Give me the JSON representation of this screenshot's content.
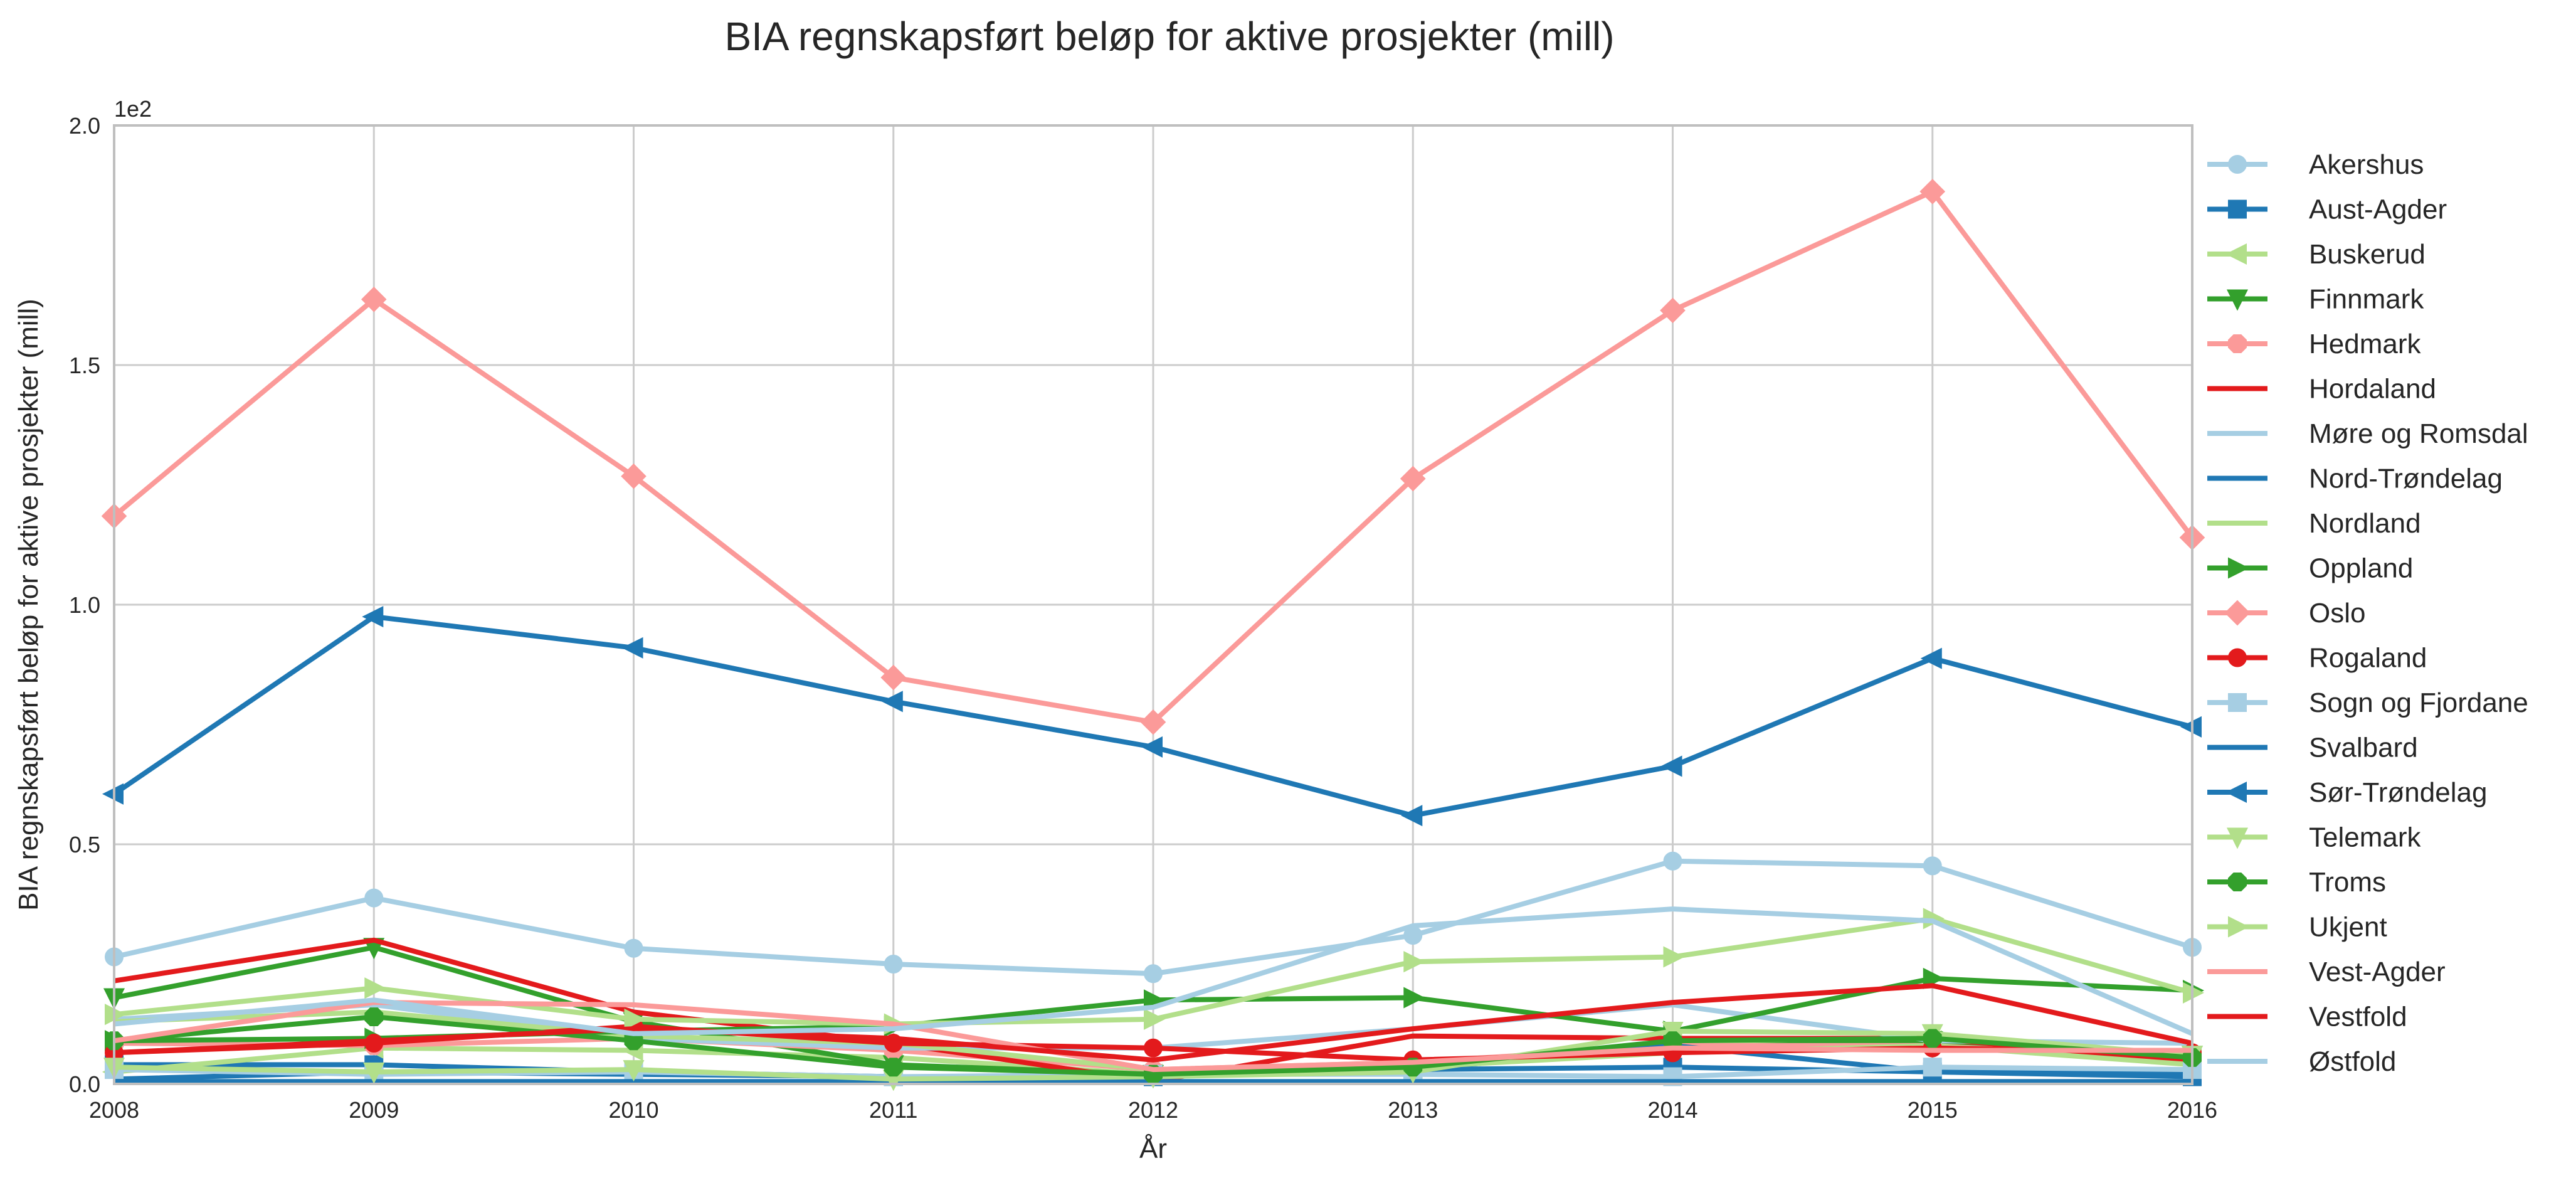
{
  "chart_data": {
    "type": "line",
    "title": "BIA regnskapsført beløp for aktive prosjekter (mill)",
    "xlabel": "År",
    "ylabel": "BIA regnskapsført beløp for aktive prosjekter (mill)",
    "y_offset_label": "1e2",
    "x": [
      2008,
      2009,
      2010,
      2011,
      2012,
      2013,
      2014,
      2015,
      2016
    ],
    "xticks": [
      "2008",
      "2009",
      "2010",
      "2011",
      "2012",
      "2013",
      "2014",
      "2015",
      "2016"
    ],
    "yticks": [
      "0.0",
      "0.5",
      "1.0",
      "1.5",
      "2.0"
    ],
    "ylim": [
      0,
      200
    ],
    "xlim": [
      2008,
      2016
    ],
    "grid": true,
    "legend_position": "right-outside",
    "series": [
      {
        "name": "Akershus",
        "color": "#a6cee3",
        "marker": "circle",
        "values": [
          26.5,
          38.8,
          28.3,
          25.0,
          23.0,
          31.0,
          46.5,
          45.5,
          28.5
        ]
      },
      {
        "name": "Aust-Agder",
        "color": "#1f78b4",
        "marker": "square",
        "values": [
          4.0,
          4.0,
          2.5,
          1.5,
          1.5,
          3.0,
          3.5,
          2.5,
          1.5
        ]
      },
      {
        "name": "Buskerud",
        "color": "#b2df8a",
        "marker": "triangle-left",
        "values": [
          2.5,
          7.5,
          7.0,
          5.5,
          2.0,
          3.0,
          9.0,
          9.0,
          5.5
        ]
      },
      {
        "name": "Finnmark",
        "color": "#33a02c",
        "marker": "triangle-down",
        "values": [
          18.0,
          28.5,
          13.0,
          4.0,
          2.0,
          3.5,
          7.5,
          9.0,
          6.0
        ]
      },
      {
        "name": "Hedmark",
        "color": "#fb9a99",
        "marker": "octagon",
        "values": [
          8.5,
          8.0,
          9.5,
          7.0,
          3.0,
          4.5,
          8.0,
          8.0,
          5.0
        ]
      },
      {
        "name": "Hordaland",
        "color": "#e31a1c",
        "marker": "none",
        "values": [
          21.5,
          30.0,
          15.0,
          8.5,
          0.5,
          10.0,
          9.5,
          9.5,
          4.5
        ]
      },
      {
        "name": "Møre og Romsdal",
        "color": "#a6cee3",
        "marker": "none",
        "values": [
          13.5,
          16.5,
          9.5,
          7.5,
          7.5,
          11.5,
          16.5,
          9.0,
          8.5
        ]
      },
      {
        "name": "Nord-Trøndelag",
        "color": "#1f78b4",
        "marker": "none",
        "values": [
          1.0,
          2.5,
          2.0,
          1.5,
          1.5,
          3.0,
          8.0,
          2.5,
          2.0
        ]
      },
      {
        "name": "Nordland",
        "color": "#b2df8a",
        "marker": "none",
        "values": [
          13.0,
          15.0,
          10.0,
          8.5,
          3.0,
          3.5,
          6.5,
          8.0,
          4.0
        ]
      },
      {
        "name": "Oppland",
        "color": "#33a02c",
        "marker": "triangle-right",
        "values": [
          9.0,
          9.5,
          11.0,
          12.0,
          17.5,
          18.0,
          11.0,
          22.0,
          19.5
        ]
      },
      {
        "name": "Oslo",
        "color": "#fb9a99",
        "marker": "diamond",
        "values": [
          118.5,
          163.7,
          126.8,
          84.8,
          75.5,
          126.3,
          161.4,
          186.2,
          114.0
        ]
      },
      {
        "name": "Rogaland",
        "color": "#e31a1c",
        "marker": "circle",
        "values": [
          6.5,
          8.5,
          12.0,
          8.5,
          7.5,
          5.0,
          6.5,
          7.5,
          6.5
        ]
      },
      {
        "name": "Sogn og Fjordane",
        "color": "#a6cee3",
        "marker": "square",
        "values": [
          3.0,
          2.0,
          2.5,
          1.5,
          2.0,
          2.0,
          1.5,
          3.5,
          3.0
        ]
      },
      {
        "name": "Svalbard",
        "color": "#1f78b4",
        "marker": "none",
        "values": [
          0.5,
          0.5,
          0.5,
          0.5,
          0.5,
          0.5,
          0.5,
          0.5,
          0.5
        ]
      },
      {
        "name": "Sør-Trøndelag",
        "color": "#1f78b4",
        "marker": "triangle-left",
        "values": [
          60.5,
          97.5,
          91.0,
          79.8,
          70.3,
          56.0,
          66.3,
          88.8,
          74.5
        ]
      },
      {
        "name": "Telemark",
        "color": "#b2df8a",
        "marker": "triangle-down",
        "values": [
          3.5,
          2.5,
          3.0,
          1.0,
          1.5,
          2.5,
          11.0,
          10.5,
          6.0
        ]
      },
      {
        "name": "Troms",
        "color": "#33a02c",
        "marker": "octagon",
        "values": [
          9.0,
          14.0,
          9.0,
          3.5,
          2.0,
          3.5,
          9.0,
          9.5,
          5.5
        ]
      },
      {
        "name": "Ukjent",
        "color": "#b2df8a",
        "marker": "triangle-right",
        "values": [
          14.5,
          20.0,
          13.5,
          12.5,
          13.5,
          25.5,
          26.5,
          34.5,
          19.0
        ]
      },
      {
        "name": "Vest-Agder",
        "color": "#fb9a99",
        "marker": "none",
        "values": [
          9.0,
          17.0,
          16.5,
          12.5,
          3.0,
          4.5,
          7.5,
          7.0,
          7.0
        ]
      },
      {
        "name": "Vestfold",
        "color": "#e31a1c",
        "marker": "none",
        "values": [
          6.5,
          9.0,
          11.5,
          9.5,
          5.0,
          11.5,
          17.0,
          20.5,
          8.5
        ]
      },
      {
        "name": "Østfold",
        "color": "#a6cee3",
        "marker": "none",
        "values": [
          12.5,
          17.5,
          10.5,
          11.5,
          16.0,
          33.0,
          36.5,
          34.0,
          10.5
        ]
      }
    ]
  }
}
